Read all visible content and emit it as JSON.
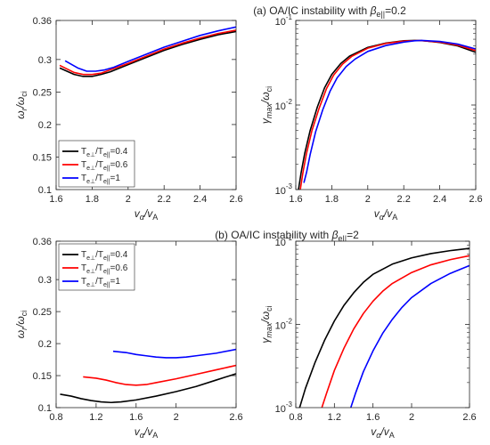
{
  "panel_titles": {
    "a": {
      "prefix": "(a) OA/IC instability with ",
      "beta": "β",
      "sub": "e||",
      "suffix": "=0.2"
    },
    "b": {
      "prefix": "(b) OA/IC instability with ",
      "beta": "β",
      "sub": "e||",
      "suffix": "=2"
    }
  },
  "legend_entries": [
    {
      "main": "T",
      "sub1": "e⊥",
      "mid": "/T",
      "sub2": "e||",
      "val": "=0.4",
      "color": "#000000"
    },
    {
      "main": "T",
      "sub1": "e⊥",
      "mid": "/T",
      "sub2": "e||",
      "val": "=0.6",
      "color": "#ff0000"
    },
    {
      "main": "T",
      "sub1": "e⊥",
      "mid": "/T",
      "sub2": "e||",
      "val": "=1",
      "color": "#0000ff"
    }
  ],
  "chart_data": [
    {
      "id": "a_left",
      "type": "line",
      "panel": "a",
      "xlabel": {
        "main": "v",
        "sub1": "α",
        "mid": "/v",
        "sub2": "A"
      },
      "ylabel": {
        "main": "ω",
        "sub1": "r",
        "mid": "/ω",
        "sub2": "ci"
      },
      "xlim": [
        1.6,
        2.6
      ],
      "ylim": [
        0.1,
        0.36
      ],
      "yscale": "linear",
      "xticks": [
        1.6,
        1.8,
        2.0,
        2.2,
        2.4,
        2.6
      ],
      "xtick_labels": [
        "1.6",
        "1.8",
        "2",
        "2.2",
        "2.4",
        "2.6"
      ],
      "yticks": [
        0.1,
        0.15,
        0.2,
        0.25,
        0.3,
        0.36
      ],
      "ytick_labels": [
        "0.1",
        "0.15",
        "0.2",
        "0.25",
        "0.3",
        "0.36"
      ],
      "legend": "bottom-left",
      "series": [
        {
          "name": "Te⊥/Te||=0.4",
          "color": "#000000",
          "x": [
            1.62,
            1.7,
            1.75,
            1.8,
            1.85,
            1.9,
            2.0,
            2.1,
            2.2,
            2.3,
            2.4,
            2.5,
            2.6
          ],
          "y": [
            0.287,
            0.277,
            0.274,
            0.274,
            0.277,
            0.281,
            0.292,
            0.303,
            0.314,
            0.323,
            0.331,
            0.338,
            0.343
          ]
        },
        {
          "name": "Te⊥/Te||=0.6",
          "color": "#ff0000",
          "x": [
            1.62,
            1.7,
            1.75,
            1.8,
            1.85,
            1.9,
            2.0,
            2.1,
            2.2,
            2.3,
            2.4,
            2.5,
            2.6
          ],
          "y": [
            0.291,
            0.28,
            0.277,
            0.277,
            0.279,
            0.284,
            0.294,
            0.305,
            0.316,
            0.325,
            0.333,
            0.34,
            0.345
          ]
        },
        {
          "name": "Te⊥/Te||=1",
          "color": "#0000ff",
          "x": [
            1.65,
            1.72,
            1.77,
            1.82,
            1.87,
            1.92,
            2.0,
            2.1,
            2.2,
            2.3,
            2.4,
            2.5,
            2.6
          ],
          "y": [
            0.298,
            0.287,
            0.282,
            0.282,
            0.284,
            0.288,
            0.297,
            0.308,
            0.319,
            0.328,
            0.337,
            0.344,
            0.35
          ]
        }
      ]
    },
    {
      "id": "a_right",
      "type": "line",
      "panel": "a",
      "xlabel": {
        "main": "v",
        "sub1": "α",
        "mid": "/v",
        "sub2": "A"
      },
      "ylabel": {
        "main": "γ",
        "sub1": "max",
        "mid": "/ω",
        "sub2": "ci"
      },
      "xlim": [
        1.6,
        2.6
      ],
      "ylim": [
        0.001,
        0.1
      ],
      "yscale": "log",
      "xticks": [
        1.6,
        1.8,
        2.0,
        2.2,
        2.4,
        2.6
      ],
      "xtick_labels": [
        "1.6",
        "1.8",
        "2",
        "2.2",
        "2.4",
        "2.6"
      ],
      "yticks": [
        0.001,
        0.01,
        0.1
      ],
      "ytick_labels": [
        [
          "10",
          "-3"
        ],
        [
          "10",
          "-2"
        ],
        [
          "10",
          "-1"
        ]
      ],
      "series": [
        {
          "name": "Te⊥/Te||=0.4",
          "color": "#000000",
          "x": [
            1.615,
            1.63,
            1.65,
            1.68,
            1.72,
            1.76,
            1.8,
            1.85,
            1.9,
            2.0,
            2.1,
            2.2,
            2.26,
            2.3,
            2.4,
            2.5,
            2.6
          ],
          "y": [
            0.001,
            0.0016,
            0.0027,
            0.005,
            0.0095,
            0.016,
            0.023,
            0.031,
            0.038,
            0.048,
            0.054,
            0.0575,
            0.058,
            0.0578,
            0.055,
            0.05,
            0.042
          ]
        },
        {
          "name": "Te⊥/Te||=0.6",
          "color": "#ff0000",
          "x": [
            1.625,
            1.64,
            1.66,
            1.69,
            1.73,
            1.77,
            1.81,
            1.86,
            1.91,
            2.0,
            2.1,
            2.2,
            2.26,
            2.3,
            2.4,
            2.5,
            2.6
          ],
          "y": [
            0.001,
            0.0016,
            0.0027,
            0.005,
            0.0092,
            0.0155,
            0.0225,
            0.0305,
            0.0375,
            0.047,
            0.0535,
            0.057,
            0.0578,
            0.0577,
            0.0555,
            0.051,
            0.044
          ]
        },
        {
          "name": "Te⊥/Te||=1",
          "color": "#0000ff",
          "x": [
            1.645,
            1.66,
            1.68,
            1.71,
            1.75,
            1.79,
            1.83,
            1.88,
            1.93,
            2.0,
            2.1,
            2.2,
            2.26,
            2.3,
            2.4,
            2.5,
            2.6
          ],
          "y": [
            0.0012,
            0.0016,
            0.0026,
            0.0048,
            0.0088,
            0.0145,
            0.021,
            0.0285,
            0.035,
            0.043,
            0.0505,
            0.0555,
            0.0575,
            0.058,
            0.0565,
            0.0525,
            0.046
          ]
        }
      ]
    },
    {
      "id": "b_left",
      "type": "line",
      "panel": "b",
      "xlabel": {
        "main": "v",
        "sub1": "α",
        "mid": "/v",
        "sub2": "A"
      },
      "ylabel": {
        "main": "ω",
        "sub1": "r",
        "mid": "/ω",
        "sub2": "ci"
      },
      "xlim": [
        0.8,
        2.6
      ],
      "ylim": [
        0.1,
        0.36
      ],
      "yscale": "linear",
      "xticks": [
        0.8,
        1.2,
        1.6,
        2.0,
        2.6
      ],
      "xtick_labels": [
        "0.8",
        "1.2",
        "1.6",
        "2",
        "2.6"
      ],
      "yticks": [
        0.1,
        0.15,
        0.2,
        0.25,
        0.3,
        0.36
      ],
      "ytick_labels": [
        "0.1",
        "0.15",
        "0.2",
        "0.25",
        "0.3",
        "0.36"
      ],
      "legend": "top-left",
      "series": [
        {
          "name": "Te⊥/Te||=0.4",
          "color": "#000000",
          "x": [
            0.84,
            0.95,
            1.05,
            1.15,
            1.25,
            1.35,
            1.45,
            1.6,
            1.8,
            2.0,
            2.2,
            2.4,
            2.6
          ],
          "y": [
            0.121,
            0.118,
            0.114,
            0.111,
            0.109,
            0.108,
            0.109,
            0.112,
            0.118,
            0.125,
            0.133,
            0.143,
            0.153
          ]
        },
        {
          "name": "Te⊥/Te||=0.6",
          "color": "#ff0000",
          "x": [
            1.07,
            1.2,
            1.3,
            1.4,
            1.5,
            1.6,
            1.7,
            1.8,
            2.0,
            2.2,
            2.4,
            2.6
          ],
          "y": [
            0.148,
            0.146,
            0.143,
            0.139,
            0.136,
            0.135,
            0.136,
            0.139,
            0.145,
            0.152,
            0.159,
            0.166
          ]
        },
        {
          "name": "Te⊥/Te||=1",
          "color": "#0000ff",
          "x": [
            1.37,
            1.5,
            1.6,
            1.7,
            1.8,
            1.9,
            2.0,
            2.1,
            2.2,
            2.4,
            2.6
          ],
          "y": [
            0.188,
            0.186,
            0.183,
            0.181,
            0.179,
            0.178,
            0.178,
            0.179,
            0.181,
            0.185,
            0.191
          ]
        }
      ]
    },
    {
      "id": "b_right",
      "type": "line",
      "panel": "b",
      "xlabel": {
        "main": "v",
        "sub1": "α",
        "mid": "/v",
        "sub2": "A"
      },
      "ylabel": {
        "main": "γ",
        "sub1": "max",
        "mid": "/ω",
        "sub2": "ci"
      },
      "xlim": [
        0.8,
        2.6
      ],
      "ylim": [
        0.001,
        0.1
      ],
      "yscale": "log",
      "xticks": [
        0.8,
        1.2,
        1.6,
        2.0,
        2.6
      ],
      "xtick_labels": [
        "0.8",
        "1.2",
        "1.6",
        "2",
        "2.6"
      ],
      "yticks": [
        0.001,
        0.01,
        0.1
      ],
      "ytick_labels": [
        [
          "10",
          "-3"
        ],
        [
          "10",
          "-2"
        ],
        [
          "10",
          "-1"
        ]
      ],
      "series": [
        {
          "name": "Te⊥/Te||=0.4",
          "color": "#000000",
          "x": [
            0.84,
            0.9,
            1.0,
            1.1,
            1.2,
            1.3,
            1.4,
            1.5,
            1.6,
            1.8,
            2.0,
            2.2,
            2.4,
            2.6
          ],
          "y": [
            0.001,
            0.0017,
            0.0035,
            0.0065,
            0.011,
            0.017,
            0.024,
            0.032,
            0.04,
            0.053,
            0.063,
            0.071,
            0.077,
            0.082
          ]
        },
        {
          "name": "Te⊥/Te||=0.6",
          "color": "#ff0000",
          "x": [
            1.07,
            1.12,
            1.2,
            1.3,
            1.4,
            1.5,
            1.6,
            1.7,
            1.8,
            2.0,
            2.2,
            2.4,
            2.6
          ],
          "y": [
            0.001,
            0.0015,
            0.0028,
            0.0052,
            0.0088,
            0.0135,
            0.019,
            0.025,
            0.031,
            0.042,
            0.052,
            0.06,
            0.067
          ]
        },
        {
          "name": "Te⊥/Te||=1",
          "color": "#0000ff",
          "x": [
            1.37,
            1.42,
            1.5,
            1.6,
            1.7,
            1.8,
            1.9,
            2.0,
            2.2,
            2.4,
            2.6
          ],
          "y": [
            0.001,
            0.0015,
            0.0027,
            0.0048,
            0.0078,
            0.0115,
            0.016,
            0.021,
            0.031,
            0.041,
            0.051
          ]
        }
      ]
    }
  ]
}
